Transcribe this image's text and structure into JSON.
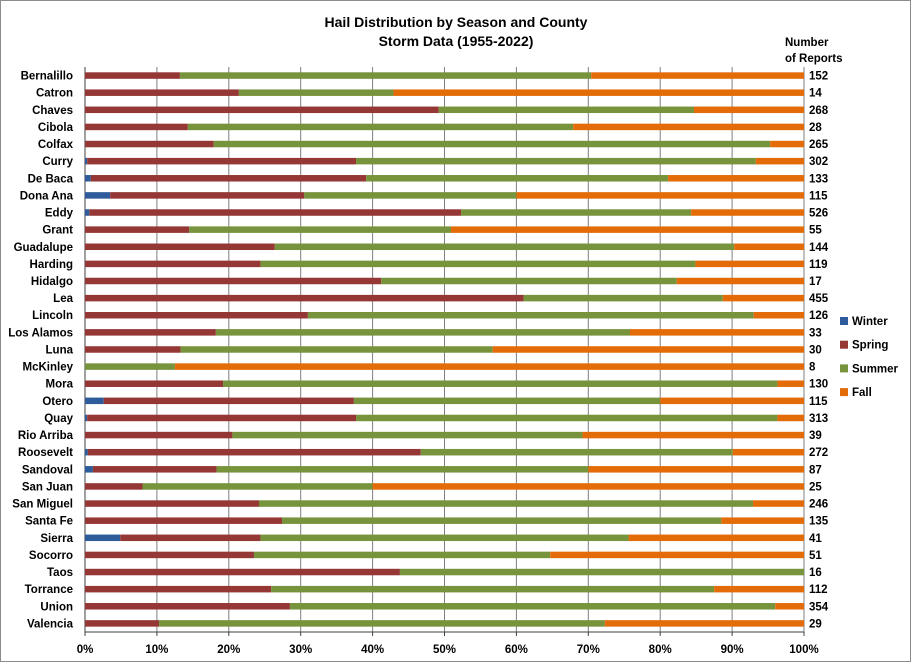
{
  "chart_data": {
    "type": "bar",
    "orientation": "horizontal",
    "stacked": "percent",
    "title": "Hail Distribution by Season and County",
    "subtitle": "Storm Data (1955-2022)",
    "count_header": [
      "Number",
      "of Reports"
    ],
    "xlim": [
      0,
      100
    ],
    "x_ticks": [
      "0%",
      "10%",
      "20%",
      "30%",
      "40%",
      "50%",
      "60%",
      "70%",
      "80%",
      "90%",
      "100%"
    ],
    "grid": "vertical",
    "legend_position": "right",
    "categories": [
      "Bernalillo",
      "Catron",
      "Chaves",
      "Cibola",
      "Colfax",
      "Curry",
      "De Baca",
      "Dona Ana",
      "Eddy",
      "Grant",
      "Guadalupe",
      "Harding",
      "Hidalgo",
      "Lea",
      "Lincoln",
      "Los Alamos",
      "Luna",
      "McKinley",
      "Mora",
      "Otero",
      "Quay",
      "Rio Arriba",
      "Roosevelt",
      "Sandoval",
      "San Juan",
      "San Miguel",
      "Santa Fe",
      "Sierra",
      "Socorro",
      "Taos",
      "Torrance",
      "Union",
      "Valencia"
    ],
    "counts": [
      "152",
      "14",
      "268",
      "28",
      "265",
      "302",
      "133",
      "115",
      "526",
      "55",
      "144",
      "119",
      "17",
      "455",
      "126",
      "33",
      "30",
      "8",
      "130",
      "115",
      "313",
      "39",
      "272",
      "87",
      "25",
      "246",
      "135",
      "41",
      "51",
      "16",
      "112",
      "354",
      "29"
    ],
    "series": [
      {
        "name": "Winter",
        "color": "#2e5c9a",
        "values": [
          0,
          0,
          0,
          0,
          0,
          0.3,
          0.8,
          3.5,
          0.6,
          0,
          0,
          0,
          0,
          0,
          0,
          0,
          0,
          0,
          0,
          2.6,
          0.3,
          0,
          0.4,
          1.1,
          0,
          0,
          0,
          4.9,
          0,
          0,
          0,
          0,
          0
        ]
      },
      {
        "name": "Spring",
        "color": "#953735",
        "values": [
          13.2,
          21.4,
          49.2,
          14.3,
          17.9,
          37.4,
          38.3,
          27,
          51.7,
          14.5,
          26.4,
          24.4,
          41.2,
          61,
          31,
          18.2,
          13.3,
          0,
          19.2,
          34.8,
          37.4,
          20.5,
          46.3,
          17.2,
          8,
          24.2,
          27.4,
          19.5,
          23.5,
          43.8,
          25.9,
          28.5,
          10.3
        ]
      },
      {
        "name": "Summer",
        "color": "#77933c",
        "values": [
          57.2,
          21.5,
          35.5,
          53.6,
          77.4,
          55.6,
          42,
          29.5,
          32,
          36.4,
          63.9,
          60.5,
          41.1,
          27.7,
          62,
          57.6,
          43.4,
          12.5,
          77.1,
          42.6,
          58.6,
          48.7,
          43.4,
          51.7,
          32,
          68.7,
          61.1,
          51.2,
          41.2,
          56.2,
          61.6,
          67.5,
          62
        ]
      },
      {
        "name": "Fall",
        "color": "#e36c09",
        "values": [
          29.6,
          57.1,
          15.3,
          32.1,
          4.7,
          6.7,
          18.9,
          40,
          15.7,
          49.1,
          9.7,
          15.1,
          17.7,
          11.3,
          7,
          24.2,
          43.3,
          87.5,
          3.7,
          20,
          3.7,
          30.8,
          9.9,
          30,
          60,
          7.1,
          11.5,
          24.4,
          35.3,
          0,
          12.5,
          4,
          27.7
        ]
      }
    ]
  }
}
